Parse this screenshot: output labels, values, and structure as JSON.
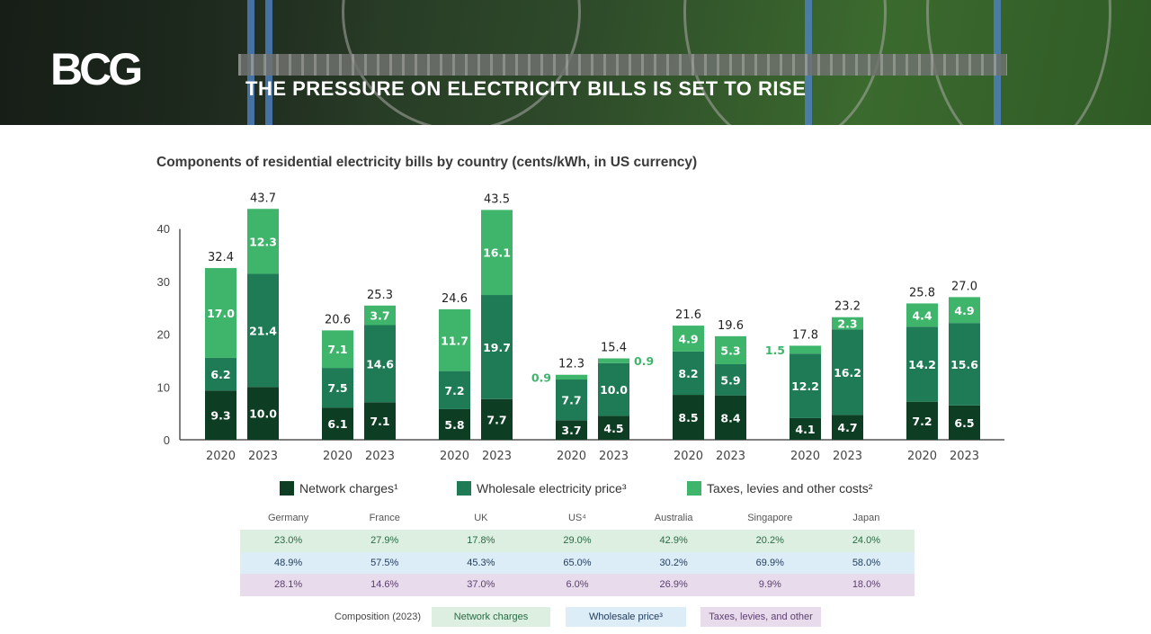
{
  "header": {
    "logo": "BCG",
    "headline": "THE PRESSURE ON ELECTRICITY BILLS IS SET TO RISE"
  },
  "colors": {
    "network": "#0d3d22",
    "wholesale": "#1f7a56",
    "taxes": "#3eb56b",
    "axis": "#555555",
    "small_label": "#3eb56b"
  },
  "chart_data": {
    "type": "bar",
    "stacked": true,
    "title": "Components of residential electricity bills by country (cents/kWh, in US currency)",
    "xlabel": "",
    "ylabel": "",
    "ylim": [
      0,
      45
    ],
    "yticks": [
      0,
      10,
      20,
      30,
      40
    ],
    "grid": false,
    "legend_position": "bottom",
    "groups": [
      "Germany",
      "France",
      "UK",
      "US",
      "Australia",
      "Singapore",
      "Japan"
    ],
    "years": [
      "2020",
      "2023"
    ],
    "categories": [
      "2020",
      "2023",
      "2020",
      "2023",
      "2020",
      "2023",
      "2020",
      "2023",
      "2020",
      "2023",
      "2020",
      "2023",
      "2020",
      "2023"
    ],
    "series": [
      {
        "name": "Network charges¹",
        "key": "network",
        "values": [
          9.3,
          10.0,
          6.1,
          7.1,
          5.8,
          7.7,
          3.7,
          4.5,
          8.5,
          8.4,
          4.1,
          4.7,
          7.2,
          6.5
        ]
      },
      {
        "name": "Wholesale electricity price³",
        "key": "wholesale",
        "values": [
          6.2,
          21.4,
          7.5,
          14.6,
          7.2,
          19.7,
          7.7,
          10.0,
          8.2,
          5.9,
          12.2,
          16.2,
          14.2,
          15.6
        ]
      },
      {
        "name": "Taxes, levies and other costs²",
        "key": "taxes",
        "values": [
          17.0,
          12.3,
          7.1,
          3.7,
          11.7,
          16.1,
          0.9,
          0.9,
          4.9,
          5.3,
          1.5,
          2.3,
          4.4,
          4.9
        ]
      }
    ],
    "totals": [
      "32.4",
      "43.7",
      "20.6",
      "25.3",
      "24.6",
      "43.5",
      "12.3",
      "15.4",
      "21.6",
      "19.6",
      "17.8",
      "23.2",
      "25.8",
      "27.0"
    ],
    "outside_labels": [
      {
        "index": 6,
        "series": "taxes",
        "text": "0.9",
        "side": "left"
      },
      {
        "index": 7,
        "series": "taxes",
        "text": "0.9",
        "side": "right"
      },
      {
        "index": 10,
        "series": "taxes",
        "text": "1.5",
        "side": "left"
      }
    ]
  },
  "legend": [
    {
      "label": "Network charges¹",
      "key": "network"
    },
    {
      "label": "Wholesale electricity price³",
      "key": "wholesale"
    },
    {
      "label": "Taxes, levies and other costs²",
      "key": "taxes"
    }
  ],
  "composition": {
    "countries": [
      "Germany",
      "France",
      "UK",
      "US⁴",
      "Australia",
      "Singapore",
      "Japan"
    ],
    "network": [
      "23.0%",
      "27.9%",
      "17.8%",
      "29.0%",
      "42.9%",
      "20.2%",
      "24.0%"
    ],
    "wholesale": [
      "48.9%",
      "57.5%",
      "45.3%",
      "65.0%",
      "30.2%",
      "69.9%",
      "58.0%"
    ],
    "taxes": [
      "28.1%",
      "14.6%",
      "37.0%",
      "6.0%",
      "26.9%",
      "9.9%",
      "18.0%"
    ],
    "legend_label": "Composition (2023)",
    "legend_items": [
      {
        "label": "Network charges",
        "bg": "#dcefe0",
        "fg": "#2a6a45"
      },
      {
        "label": "Wholesale price³",
        "bg": "#dcedf7",
        "fg": "#1f3a5a"
      },
      {
        "label": "Taxes, levies, and other",
        "bg": "#e8dcec",
        "fg": "#5a3e6e"
      }
    ]
  }
}
